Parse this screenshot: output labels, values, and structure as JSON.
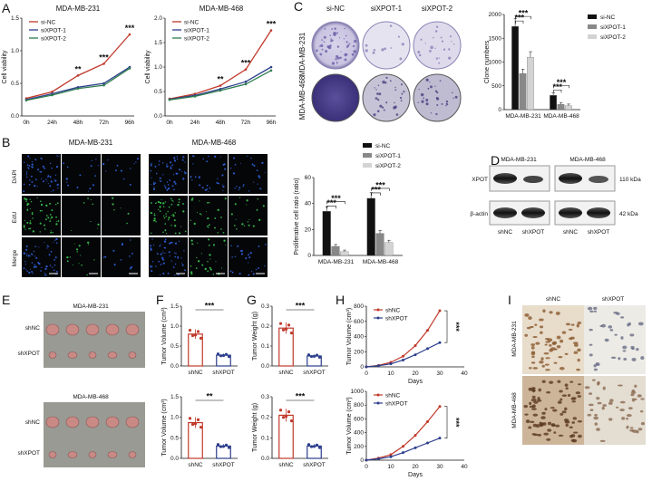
{
  "panels": {
    "A": "A",
    "B": "B",
    "C": "C",
    "D": "D",
    "E": "E",
    "F": "F",
    "G": "G",
    "H": "H",
    "I": "I"
  },
  "cell_lines": {
    "mda231": "MDA-MB-231",
    "mda468": "MDA-MB-468"
  },
  "legend": {
    "sinc": "si-NC",
    "sixpot1": "siXPOT-1",
    "sixpot2": "siXPOT-2",
    "shnc": "shNC",
    "shxpot": "shXPOT"
  },
  "labels": {
    "cell_viability": "Cell viability",
    "clone_numbers": "Clone numbers",
    "proliferative": "Proliferative cell ratio (ratio)",
    "tumor_volume": "Tumor Volume (cm³)",
    "tumor_weight": "Tumor Weight (g)",
    "days": "Days",
    "xpot": "XPOT",
    "bactin": "β-actin",
    "kda110": "110 kDa",
    "kda42": "42 kDa",
    "dapi": "DAPI",
    "edu": "EdU",
    "merge": "Merge",
    "b_col_sinc": "si-NC",
    "b_col_x1": "siXPOT-1",
    "b_col_x2": "siXPOT-2",
    "c_col_sinc": "si-NC",
    "c_col_x1": "siXPOT-1",
    "c_col_x2": "siXPOT-2",
    "d_shnc": "shNC",
    "d_shxpot": "shXPOT",
    "e_shnc": "shNC",
    "e_shxpot": "shXPOT",
    "i_shnc": "shNC",
    "i_shxpot": "shXPOT"
  },
  "stars": {
    "three": "***",
    "two": "**"
  },
  "colors": {
    "sinc": "#c0392b",
    "x1": "#2c3e8c",
    "x2": "#2e7d4f",
    "bar_dark": "#111111",
    "bar_mid": "#888888",
    "bar_light": "#d3d3d3",
    "shnc": "#c0392b",
    "shxpot": "#2c3e8c"
  },
  "chart_data": [
    {
      "id": "A1",
      "type": "line",
      "title": "MDA-MB-231",
      "ylabel": "Cell viability",
      "categories": [
        "0h",
        "24h",
        "48h",
        "72h",
        "96h"
      ],
      "ylim": [
        0,
        1.5
      ],
      "yticks": [
        "0.0",
        "0.5",
        "1.0",
        "1.5"
      ],
      "series": [
        {
          "name": "si-NC",
          "values": [
            0.27,
            0.37,
            0.62,
            0.8,
            1.25
          ]
        },
        {
          "name": "siXPOT-1",
          "values": [
            0.25,
            0.34,
            0.44,
            0.5,
            0.75
          ]
        },
        {
          "name": "siXPOT-2",
          "values": [
            0.24,
            0.32,
            0.42,
            0.47,
            0.73
          ]
        }
      ],
      "annotations": [
        "**",
        "***",
        "***"
      ]
    },
    {
      "id": "A2",
      "type": "line",
      "title": "MDA-MB-468",
      "ylabel": "Cell viability",
      "categories": [
        "0h",
        "24h",
        "48h",
        "72h",
        "96h"
      ],
      "ylim": [
        0,
        2.0
      ],
      "yticks": [
        "0.0",
        "0.5",
        "1.0",
        "1.5",
        "2.0"
      ],
      "series": [
        {
          "name": "si-NC",
          "values": [
            0.35,
            0.45,
            0.62,
            0.95,
            1.75
          ]
        },
        {
          "name": "siXPOT-1",
          "values": [
            0.34,
            0.42,
            0.55,
            0.7,
            1.0
          ]
        },
        {
          "name": "siXPOT-2",
          "values": [
            0.33,
            0.4,
            0.52,
            0.65,
            0.93
          ]
        }
      ],
      "annotations": [
        "**",
        "***",
        "***"
      ]
    },
    {
      "id": "C",
      "type": "bar",
      "ylabel": "Clone numbers",
      "categories": [
        "MDA-MB-231",
        "MDA-MB-468"
      ],
      "ylim": [
        0,
        2000
      ],
      "yticks": [
        "0",
        "500",
        "1000",
        "1500",
        "2000"
      ],
      "series": [
        {
          "name": "si-NC",
          "values": [
            1750,
            300
          ]
        },
        {
          "name": "siXPOT-1",
          "values": [
            760,
            110
          ]
        },
        {
          "name": "siXPOT-2",
          "values": [
            1100,
            80
          ]
        }
      ],
      "annotations": [
        "***",
        "***",
        "***",
        "***"
      ]
    },
    {
      "id": "B",
      "type": "bar",
      "ylabel": "Proliferative cell ratio (ratio)",
      "categories": [
        "MDA-MB-231",
        "MDA-MB-468"
      ],
      "ylim": [
        0,
        60
      ],
      "yticks": [
        "0",
        "20",
        "40",
        "60"
      ],
      "series": [
        {
          "name": "si-NC",
          "values": [
            34,
            44
          ]
        },
        {
          "name": "siXPOT-1",
          "values": [
            7,
            17
          ]
        },
        {
          "name": "siXPOT-2",
          "values": [
            3,
            10
          ]
        }
      ],
      "annotations": [
        "***",
        "***",
        "***",
        "***"
      ]
    },
    {
      "id": "F1",
      "type": "bar",
      "ylabel": "Tumor Volume (cm³)",
      "categories": [
        "shNC",
        "shXPOT"
      ],
      "ylim": [
        0,
        1.5
      ],
      "yticks": [
        "0.0",
        "0.5",
        "1.0",
        "1.5"
      ],
      "values": [
        0.8,
        0.27
      ],
      "annotations": [
        "***"
      ]
    },
    {
      "id": "F2",
      "type": "bar",
      "ylabel": "Tumor Volume (cm³)",
      "categories": [
        "shNC",
        "shXPOT"
      ],
      "ylim": [
        0,
        1.5
      ],
      "yticks": [
        "0.0",
        "0.5",
        "1.0",
        "1.5"
      ],
      "values": [
        0.87,
        0.3
      ],
      "annotations": [
        "**"
      ]
    },
    {
      "id": "G1",
      "type": "bar",
      "ylabel": "Tumor Weight (g)",
      "categories": [
        "shNC",
        "shXPOT"
      ],
      "ylim": [
        0,
        0.3
      ],
      "yticks": [
        "0.0",
        "0.1",
        "0.2",
        "0.3"
      ],
      "values": [
        0.19,
        0.05
      ],
      "annotations": [
        "***"
      ]
    },
    {
      "id": "G2",
      "type": "bar",
      "ylabel": "Tumor Weight (g)",
      "categories": [
        "shNC",
        "shXPOT"
      ],
      "ylim": [
        0,
        0.3
      ],
      "yticks": [
        "0.0",
        "0.1",
        "0.2",
        "0.3"
      ],
      "values": [
        0.21,
        0.06
      ],
      "annotations": [
        "***"
      ]
    },
    {
      "id": "H1",
      "type": "line",
      "ylabel": "Tumor Volume (cm³)",
      "xlabel": "Days",
      "x": [
        0,
        5,
        10,
        15,
        20,
        25,
        30
      ],
      "xlim": [
        0,
        40
      ],
      "xticks": [
        "0",
        "10",
        "20",
        "30",
        "40"
      ],
      "ylim": [
        0,
        800
      ],
      "yticks": [
        "0",
        "200",
        "400",
        "600",
        "800"
      ],
      "series": [
        {
          "name": "shNC",
          "values": [
            0,
            20,
            60,
            140,
            280,
            480,
            740
          ]
        },
        {
          "name": "shXPOT",
          "values": [
            0,
            15,
            40,
            90,
            160,
            240,
            320
          ]
        }
      ],
      "annotations": [
        "***"
      ]
    },
    {
      "id": "H2",
      "type": "line",
      "ylabel": "Tumor Volume (cm³)",
      "xlabel": "Days",
      "x": [
        0,
        5,
        10,
        15,
        20,
        25,
        30
      ],
      "xlim": [
        0,
        40
      ],
      "xticks": [
        "0",
        "10",
        "20",
        "30",
        "40"
      ],
      "ylim": [
        0,
        1000
      ],
      "yticks": [
        "0",
        "200",
        "400",
        "600",
        "800",
        "1000"
      ],
      "series": [
        {
          "name": "shNC",
          "values": [
            0,
            30,
            80,
            200,
            360,
            560,
            780
          ]
        },
        {
          "name": "shXPOT",
          "values": [
            0,
            20,
            50,
            110,
            180,
            250,
            320
          ]
        }
      ],
      "annotations": [
        "***"
      ]
    }
  ]
}
